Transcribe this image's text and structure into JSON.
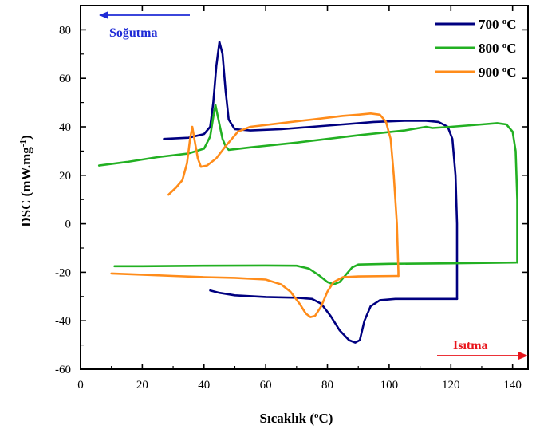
{
  "chart_data": {
    "type": "line",
    "xlabel": "Sıcaklık (",
    "xlabel_sup": "o",
    "xlabel_end": "C)",
    "ylabel": "DSC (mW.mg",
    "ylabel_sup": "-1",
    "ylabel_end": ")",
    "xlim": [
      0,
      145
    ],
    "ylim": [
      -60,
      90
    ],
    "x_ticks": [
      0,
      20,
      40,
      60,
      80,
      100,
      120,
      140
    ],
    "y_ticks": [
      -60,
      -40,
      -20,
      0,
      20,
      40,
      60,
      80
    ],
    "grid": false,
    "legend_position": "top-right",
    "annotations": [
      {
        "text": "Soğutma",
        "color": "#1f2bd6",
        "arrow": "left",
        "position": "top-left"
      },
      {
        "text": "Isıtma",
        "color": "#e8141b",
        "arrow": "right",
        "position": "bottom-right"
      }
    ],
    "series": [
      {
        "name": "700 ",
        "name_sup": "o",
        "name_end": "C",
        "color": "#000080",
        "cooling": [
          [
            27,
            35
          ],
          [
            35,
            35.5
          ],
          [
            40,
            37
          ],
          [
            42,
            40
          ],
          [
            43,
            50
          ],
          [
            44,
            65
          ],
          [
            45,
            75
          ],
          [
            46,
            70
          ],
          [
            47,
            55
          ],
          [
            48,
            43
          ],
          [
            50,
            39
          ],
          [
            55,
            38.5
          ],
          [
            65,
            39
          ],
          [
            75,
            40
          ],
          [
            85,
            41
          ],
          [
            95,
            42
          ],
          [
            105,
            42.5
          ],
          [
            112,
            42.5
          ],
          [
            116,
            42
          ],
          [
            119,
            40
          ],
          [
            120.5,
            35
          ],
          [
            121.5,
            20
          ],
          [
            122,
            0
          ],
          [
            122,
            -20
          ],
          [
            122,
            -31
          ]
        ],
        "heating": [
          [
            42,
            -27.5
          ],
          [
            45,
            -28.5
          ],
          [
            50,
            -29.5
          ],
          [
            60,
            -30.2
          ],
          [
            70,
            -30.5
          ],
          [
            75,
            -31
          ],
          [
            78,
            -33
          ],
          [
            81,
            -38
          ],
          [
            84,
            -44
          ],
          [
            87,
            -48
          ],
          [
            89,
            -49
          ],
          [
            90.5,
            -48
          ],
          [
            92,
            -40
          ],
          [
            94,
            -34
          ],
          [
            97,
            -31.5
          ],
          [
            102,
            -31
          ],
          [
            112,
            -31
          ],
          [
            122,
            -31
          ]
        ]
      },
      {
        "name": "800 ",
        "name_sup": "o",
        "name_end": "C",
        "color": "#22b022",
        "cooling": [
          [
            6,
            24
          ],
          [
            15,
            25.5
          ],
          [
            25,
            27.5
          ],
          [
            35,
            29
          ],
          [
            40,
            31
          ],
          [
            42,
            36
          ],
          [
            43,
            44
          ],
          [
            43.7,
            49
          ],
          [
            44.5,
            44
          ],
          [
            46,
            35
          ],
          [
            47,
            32
          ],
          [
            48,
            30.5
          ],
          [
            55,
            31.5
          ],
          [
            70,
            33.5
          ],
          [
            90,
            36.5
          ],
          [
            105,
            38.5
          ],
          [
            112,
            40
          ],
          [
            114,
            39.5
          ],
          [
            120,
            40
          ],
          [
            130,
            41
          ],
          [
            135,
            41.5
          ],
          [
            138,
            41
          ],
          [
            140,
            38
          ],
          [
            141,
            30
          ],
          [
            141.5,
            10
          ],
          [
            141.5,
            -10
          ],
          [
            141.5,
            -16
          ]
        ],
        "heating": [
          [
            11,
            -17.5
          ],
          [
            20,
            -17.5
          ],
          [
            40,
            -17.3
          ],
          [
            60,
            -17.2
          ],
          [
            70,
            -17.3
          ],
          [
            74,
            -18.5
          ],
          [
            77,
            -21
          ],
          [
            80,
            -24
          ],
          [
            82,
            -25
          ],
          [
            84,
            -24
          ],
          [
            86,
            -21
          ],
          [
            88,
            -18
          ],
          [
            90,
            -16.8
          ],
          [
            100,
            -16.5
          ],
          [
            120,
            -16.3
          ],
          [
            141,
            -16
          ]
        ]
      },
      {
        "name": "900 ",
        "name_sup": "o",
        "name_end": "C",
        "color": "#ff8c1a",
        "cooling": [
          [
            28.5,
            12
          ],
          [
            31,
            15
          ],
          [
            33,
            18
          ],
          [
            34.5,
            25
          ],
          [
            35.5,
            35
          ],
          [
            36.2,
            40
          ],
          [
            37,
            34
          ],
          [
            38,
            27
          ],
          [
            39,
            23.5
          ],
          [
            41,
            24
          ],
          [
            44,
            27
          ],
          [
            47,
            32
          ],
          [
            51,
            38
          ],
          [
            55,
            40
          ],
          [
            65,
            41.5
          ],
          [
            75,
            43
          ],
          [
            85,
            44.5
          ],
          [
            90,
            45
          ],
          [
            94,
            45.5
          ],
          [
            97,
            45
          ],
          [
            99,
            42
          ],
          [
            100.5,
            35
          ],
          [
            101.5,
            20
          ],
          [
            102.5,
            0
          ],
          [
            103,
            -20
          ],
          [
            103,
            -21.5
          ]
        ],
        "heating": [
          [
            10,
            -20.5
          ],
          [
            20,
            -21
          ],
          [
            30,
            -21.5
          ],
          [
            40,
            -22
          ],
          [
            50,
            -22.3
          ],
          [
            60,
            -23
          ],
          [
            65,
            -25
          ],
          [
            68,
            -28
          ],
          [
            71,
            -33
          ],
          [
            73,
            -37
          ],
          [
            74.5,
            -38.5
          ],
          [
            76,
            -38
          ],
          [
            78,
            -34
          ],
          [
            80,
            -28
          ],
          [
            82,
            -24
          ],
          [
            85,
            -22
          ],
          [
            90,
            -21.7
          ],
          [
            103,
            -21.5
          ]
        ]
      }
    ]
  }
}
